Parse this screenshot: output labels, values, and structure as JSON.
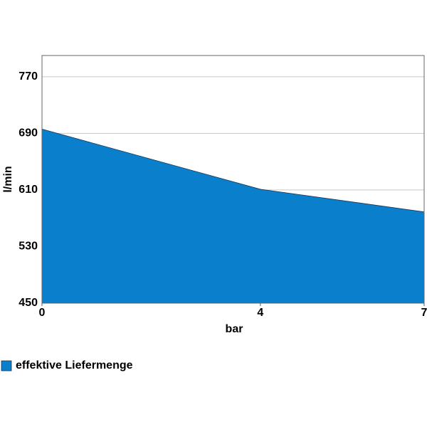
{
  "chart_data": {
    "type": "area",
    "x": [
      0,
      4,
      7
    ],
    "series": [
      {
        "name": "effektive Liefermenge",
        "color": "#0a7fcc",
        "values": [
          696,
          611,
          579
        ]
      }
    ],
    "xlim": [
      0,
      7
    ],
    "xticks": [
      0,
      4,
      7
    ],
    "ylim": [
      450,
      800
    ],
    "yticks": [
      450,
      530,
      610,
      690,
      770
    ],
    "x_label": "bar",
    "y_label": "l/min",
    "grid": true,
    "legend": "bottom-left"
  }
}
